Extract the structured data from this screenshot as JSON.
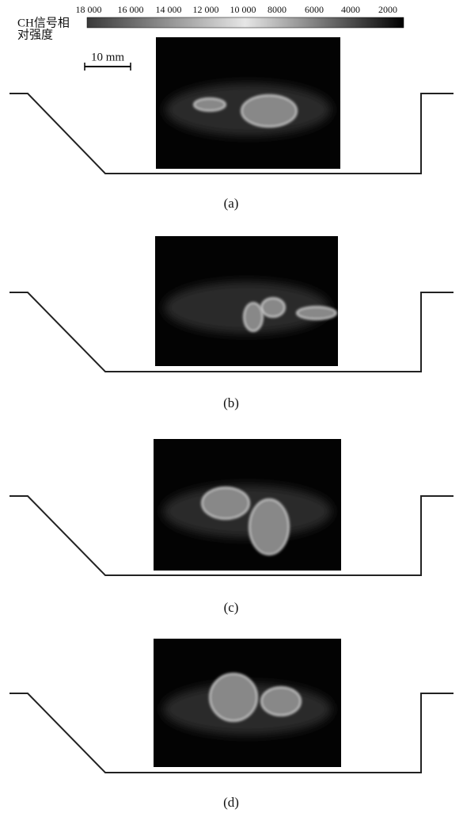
{
  "colorbar": {
    "label": [
      "CH信号相",
      "对强度"
    ],
    "ticks": [
      "18 000",
      "16 000",
      "14 000",
      "12 000",
      "10 000",
      "8000",
      "6000",
      "4000",
      "2000"
    ]
  },
  "scale_bar": "10 mm",
  "panels": [
    {
      "label": "(a)"
    },
    {
      "label": "(b)"
    },
    {
      "label": "(c)"
    },
    {
      "label": "(d)"
    }
  ]
}
